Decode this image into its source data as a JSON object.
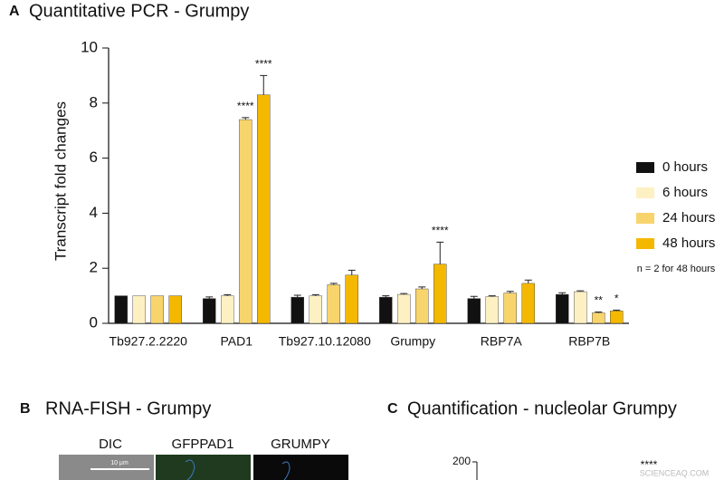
{
  "chart_data": {
    "type": "bar",
    "panel_label": "A",
    "title": "Quantitative PCR - Grumpy",
    "y_label": "Transcript fold changes",
    "categories": [
      "Tb927.2.2220",
      "PAD1",
      "Tb927.10.12080",
      "Grumpy",
      "RBP7A",
      "RBP7B"
    ],
    "series": [
      {
        "name": "0 hours",
        "color": "#111111",
        "values": [
          1,
          0.9,
          0.95,
          0.95,
          0.9,
          1.05
        ],
        "errors": [
          0,
          0.06,
          0.07,
          0.05,
          0.08,
          0.06
        ],
        "significance": [
          null,
          null,
          null,
          null,
          null,
          null
        ]
      },
      {
        "name": "6 hours",
        "color": "#fdf0c2",
        "values": [
          1,
          1.0,
          1.0,
          1.05,
          0.97,
          1.15
        ],
        "errors": [
          0,
          0.04,
          0.04,
          0.03,
          0.03,
          0.03
        ],
        "significance": [
          null,
          null,
          null,
          null,
          null,
          null
        ]
      },
      {
        "name": "24 hours",
        "color": "#f8d46c",
        "values": [
          1,
          7.4,
          1.4,
          1.25,
          1.1,
          0.38
        ],
        "errors": [
          0,
          0.07,
          0.05,
          0.07,
          0.06,
          0.03
        ],
        "significance": [
          null,
          "****",
          null,
          null,
          null,
          "**"
        ]
      },
      {
        "name": "48 hours",
        "color": "#f5b800",
        "values": [
          1,
          8.3,
          1.75,
          2.15,
          1.45,
          0.45
        ],
        "errors": [
          0,
          0.7,
          0.18,
          0.8,
          0.12,
          0.03
        ],
        "significance": [
          null,
          "****",
          null,
          "****",
          null,
          "*"
        ]
      }
    ],
    "ylim": [
      0,
      10
    ],
    "yticks": [
      0,
      2,
      4,
      6,
      8,
      10
    ],
    "legend_note": "n = 2 for 48 hours"
  },
  "panels": [
    {
      "label": "B",
      "title": "RNA-FISH - Grumpy",
      "columns": [
        "DIC",
        "GFPPAD1",
        "GRUMPY"
      ],
      "scale_bar": "10 µm"
    },
    {
      "label": "C",
      "title": "Quantification - nucleolar Grumpy",
      "axis_tick": "200",
      "significance": "****"
    }
  ],
  "watermark": "SCIENCEAQ.COM"
}
